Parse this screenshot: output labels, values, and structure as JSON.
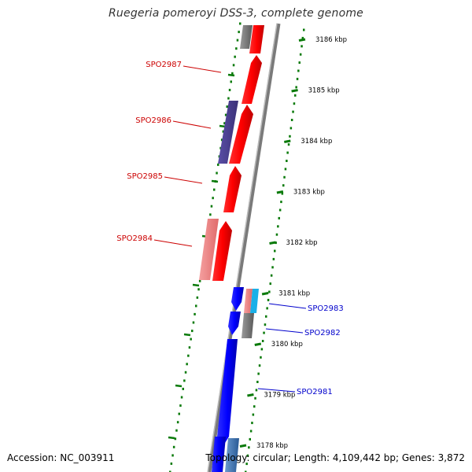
{
  "title": "Ruegeria pomeroyi DSS-3, complete genome",
  "footer": {
    "accession": "Accession: NC_003911",
    "topology": "Topology: circular; Length: 4,109,442 bp; Genes: 3,872"
  },
  "colors": {
    "forward": "#ff0000",
    "forward_light": "#f08080",
    "reverse": "#0000ff",
    "reverse_light": "#3a6fb0",
    "other_purple": "#4b3f8f",
    "gray": "#808080",
    "cyan": "#1ab0e8",
    "tick": "#0a7a0a",
    "label_fwd": "#cc0000",
    "label_rev": "#0000cc"
  },
  "scale": [
    {
      "label": "3186 kbp"
    },
    {
      "label": "3185 kbp"
    },
    {
      "label": "3184 kbp"
    },
    {
      "label": "3183 kbp"
    },
    {
      "label": "3182 kbp"
    },
    {
      "label": "3181 kbp"
    },
    {
      "label": "3180 kbp"
    },
    {
      "label": "3179 kbp"
    },
    {
      "label": "3178 kbp"
    }
  ],
  "gene_labels": [
    {
      "name": "SPO2987",
      "strand": "forward"
    },
    {
      "name": "SPO2986",
      "strand": "forward"
    },
    {
      "name": "SPO2985",
      "strand": "forward"
    },
    {
      "name": "SPO2984",
      "strand": "forward"
    },
    {
      "name": "SPO2983",
      "strand": "reverse"
    },
    {
      "name": "SPO2982",
      "strand": "reverse"
    },
    {
      "name": "SPO2981",
      "strand": "reverse"
    }
  ]
}
